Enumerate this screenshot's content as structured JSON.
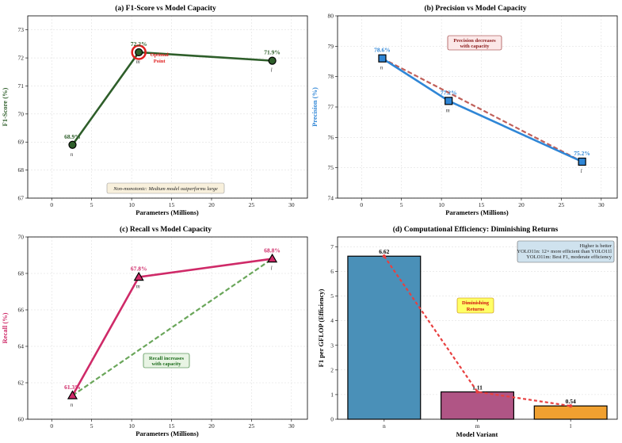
{
  "chart_data": [
    {
      "id": "a",
      "type": "line",
      "title": "(a) F1-Score vs Model Capacity",
      "xlabel": "Parameters (Millions)",
      "ylabel": "F1-Score (%)",
      "xlim": [
        -3,
        32
      ],
      "ylim": [
        67,
        73.5
      ],
      "xticks": [
        0,
        5,
        10,
        15,
        20,
        25,
        30
      ],
      "yticks": [
        67,
        68,
        69,
        70,
        71,
        72,
        73
      ],
      "grid": true,
      "color": "#2e5e2a",
      "ylabel_color": "#2e5e2a",
      "x": [
        2.6,
        10.9,
        27.6
      ],
      "y": [
        68.9,
        72.2,
        71.9
      ],
      "point_labels": [
        "68.9%",
        "72.2%",
        "71.9%"
      ],
      "variant_labels": [
        "n",
        "m",
        "l"
      ],
      "marker": "circle",
      "highlight": {
        "index": 1,
        "color": "#e02020",
        "label": "Optimal\nPoint"
      },
      "annotation": {
        "text": "Non-monotonic: Medium model outperforms large",
        "x": 15,
        "y": 67.35
      }
    },
    {
      "id": "b",
      "type": "line",
      "title": "(b) Precision vs Model Capacity",
      "xlabel": "Parameters (Millions)",
      "ylabel": "Precision (%)",
      "xlim": [
        -3,
        32
      ],
      "ylim": [
        74,
        80
      ],
      "xticks": [
        0,
        5,
        10,
        15,
        20,
        25,
        30
      ],
      "yticks": [
        74,
        75,
        76,
        77,
        78,
        79,
        80
      ],
      "grid": true,
      "color": "#2f86d6",
      "ylabel_color": "#2f86d6",
      "x": [
        2.6,
        10.9,
        27.6
      ],
      "y": [
        78.6,
        77.2,
        75.2
      ],
      "point_labels": [
        "78.6%",
        "77.2%",
        "75.2%"
      ],
      "variant_labels": [
        "n",
        "m",
        "l"
      ],
      "marker": "square",
      "trend": {
        "color": "#c0605a",
        "from": [
          2.6,
          78.6
        ],
        "to": [
          27.6,
          75.2
        ]
      },
      "annotation": {
        "text": "Precision decreases\nwith capacity",
        "x": 15.5,
        "y": 79.2,
        "color": "#8b1a1a"
      }
    },
    {
      "id": "c",
      "type": "line",
      "title": "(c) Recall vs Model Capacity",
      "xlabel": "Parameters (Millions)",
      "ylabel": "Recall (%)",
      "xlim": [
        -3,
        32
      ],
      "ylim": [
        60,
        70
      ],
      "xticks": [
        0,
        5,
        10,
        15,
        20,
        25,
        30
      ],
      "yticks": [
        60,
        62,
        64,
        66,
        68,
        70
      ],
      "grid": true,
      "color": "#cf2a68",
      "ylabel_color": "#cf2a68",
      "x": [
        2.6,
        10.9,
        27.6
      ],
      "y": [
        61.3,
        67.8,
        68.8
      ],
      "point_labels": [
        "61.3%",
        "67.8%",
        "68.8%"
      ],
      "variant_labels": [
        "n",
        "m",
        "l"
      ],
      "marker": "triangle",
      "trend": {
        "color": "#6aa65a",
        "from": [
          2.6,
          61.3
        ],
        "to": [
          27.6,
          68.8
        ]
      },
      "annotation": {
        "text": "Recall increases\nwith capacity",
        "x": 15,
        "y": 63.4,
        "color": "#1a6b1a"
      }
    },
    {
      "id": "d",
      "type": "bar",
      "title": "(d) Computational Efficiency: Diminishing Returns",
      "xlabel": "Model Variant",
      "ylabel": "F1 per GFLOP (Efficiency)",
      "categories": [
        "n",
        "m",
        "l"
      ],
      "values": [
        6.62,
        1.11,
        0.54
      ],
      "value_labels": [
        "6.62",
        "1.11",
        "0.54"
      ],
      "colors": [
        "#4a90b8",
        "#b05585",
        "#f0a030"
      ],
      "ylim": [
        0,
        7.4
      ],
      "yticks": [
        0,
        1,
        2,
        3,
        4,
        5,
        6,
        7
      ],
      "grid": true,
      "trend_color": "#e84040",
      "annotation": {
        "text": "Diminishing\nReturns",
        "x": 1.22,
        "y": 4.5,
        "color": "#d01010"
      },
      "info_box": [
        "Higher is better",
        "YOLO11n: 12× more efficient than YOLO11l",
        "YOLO11m: Best F1, moderate efficiency"
      ]
    }
  ]
}
